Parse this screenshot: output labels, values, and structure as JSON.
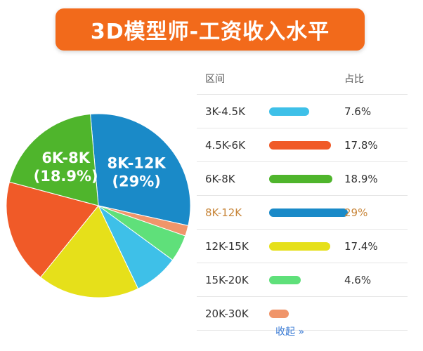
{
  "title": "3D模型师-工资收入水平",
  "table": {
    "header_range": "区间",
    "header_share": "占比",
    "collapse_label": "收起 »"
  },
  "chart_data": {
    "type": "pie",
    "title": "3D模型师-工资收入水平",
    "slices": [
      {
        "label": "3K-4.5K",
        "value": 7.6,
        "display": "7.6%",
        "color": "#3ec0e8"
      },
      {
        "label": "4.5K-6K",
        "value": 17.8,
        "display": "17.8%",
        "color": "#f05a28"
      },
      {
        "label": "6K-8K",
        "value": 18.9,
        "display": "18.9%",
        "color": "#4fb52c"
      },
      {
        "label": "8K-12K",
        "value": 29,
        "display": "29%",
        "color": "#1a8ac8"
      },
      {
        "label": "12K-15K",
        "value": 17.4,
        "display": "17.4%",
        "color": "#e6e01a"
      },
      {
        "label": "15K-20K",
        "value": 4.6,
        "display": "4.6%",
        "color": "#5fe07a"
      },
      {
        "label": "20K-30K",
        "value": 1.8,
        "display": "",
        "color": "#f0956a"
      }
    ],
    "pie_labels": [
      {
        "slice": "8K-12K",
        "line1": "8K-12K",
        "line2": "(29%)"
      },
      {
        "slice": "6K-8K",
        "line1": "6K-8K",
        "line2": "(18.9%)"
      }
    ],
    "highlight": "8K-12K",
    "legend": "right"
  }
}
